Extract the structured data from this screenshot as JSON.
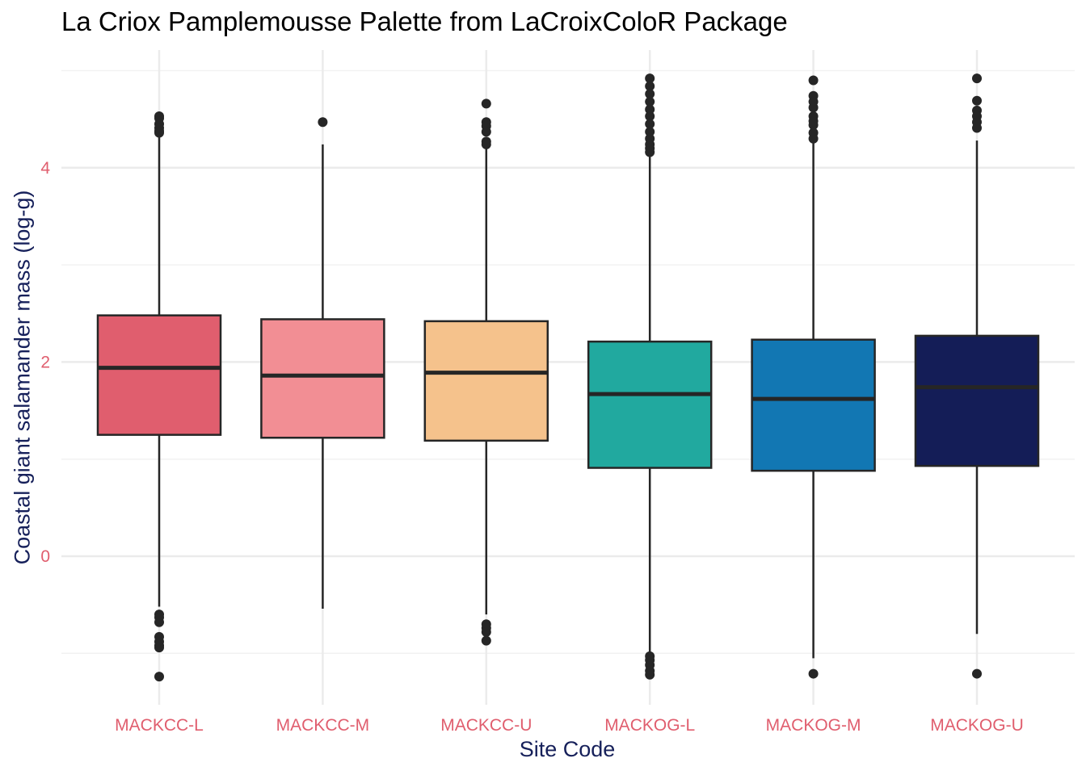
{
  "chart_data": {
    "type": "box",
    "title": "La Criox Pamplemousse Palette from LaCroixColoR Package",
    "xlabel": "Site Code",
    "ylabel": "Coastal giant salamander mass (log-g)",
    "ylim": [
      -1.5,
      5.2
    ],
    "yticks": [
      0,
      2,
      4
    ],
    "grid": true,
    "colors": {
      "axis_text": "#e05e6e",
      "title_axis": "#16205a",
      "box_outline": "#262626",
      "grid_major": "#ebebeb",
      "grid_minor": "#f2f2f2"
    },
    "categories": [
      "MACKCC-L",
      "MACKCC-M",
      "MACKCC-U",
      "MACKOG-L",
      "MACKOG-M",
      "MACKOG-U"
    ],
    "boxes": [
      {
        "category": "MACKCC-L",
        "fill": "#e05e6e",
        "q1": 1.25,
        "median": 1.94,
        "q3": 2.48,
        "whisker_low": -0.52,
        "whisker_high": 4.34,
        "outliers": [
          4.53,
          4.51,
          4.45,
          4.41,
          4.38,
          4.36,
          -0.6,
          -0.63,
          -0.68,
          -0.83,
          -0.88,
          -0.92,
          -0.94,
          -1.24
        ]
      },
      {
        "category": "MACKCC-M",
        "fill": "#f28e94",
        "q1": 1.22,
        "median": 1.86,
        "q3": 2.44,
        "whisker_low": -0.54,
        "whisker_high": 4.24,
        "outliers": [
          4.47
        ]
      },
      {
        "category": "MACKCC-U",
        "fill": "#f5c28c",
        "q1": 1.19,
        "median": 1.89,
        "q3": 2.42,
        "whisker_low": -0.6,
        "whisker_high": 4.21,
        "outliers": [
          4.66,
          4.47,
          4.43,
          4.37,
          4.27,
          4.24,
          -0.7,
          -0.74,
          -0.78,
          -0.87
        ]
      },
      {
        "category": "MACKOG-L",
        "fill": "#21a99f",
        "q1": 0.91,
        "median": 1.67,
        "q3": 2.21,
        "whisker_low": -1.02,
        "whisker_high": 4.13,
        "outliers": [
          4.92,
          4.84,
          4.76,
          4.68,
          4.6,
          4.53,
          4.45,
          4.37,
          4.3,
          4.24,
          4.2,
          4.16,
          -1.03,
          -1.07,
          -1.12,
          -1.18,
          -1.22
        ]
      },
      {
        "category": "MACKOG-M",
        "fill": "#1277b3",
        "q1": 0.88,
        "median": 1.62,
        "q3": 2.23,
        "whisker_low": -1.05,
        "whisker_high": 4.26,
        "outliers": [
          4.9,
          4.74,
          4.68,
          4.62,
          4.53,
          4.48,
          4.44,
          4.36,
          4.3,
          -1.21
        ]
      },
      {
        "category": "MACKOG-U",
        "fill": "#141d57",
        "q1": 0.93,
        "median": 1.74,
        "q3": 2.27,
        "whisker_low": -0.8,
        "whisker_high": 4.28,
        "outliers": [
          4.92,
          4.69,
          4.59,
          4.53,
          4.47,
          4.41,
          -1.21
        ]
      }
    ]
  }
}
